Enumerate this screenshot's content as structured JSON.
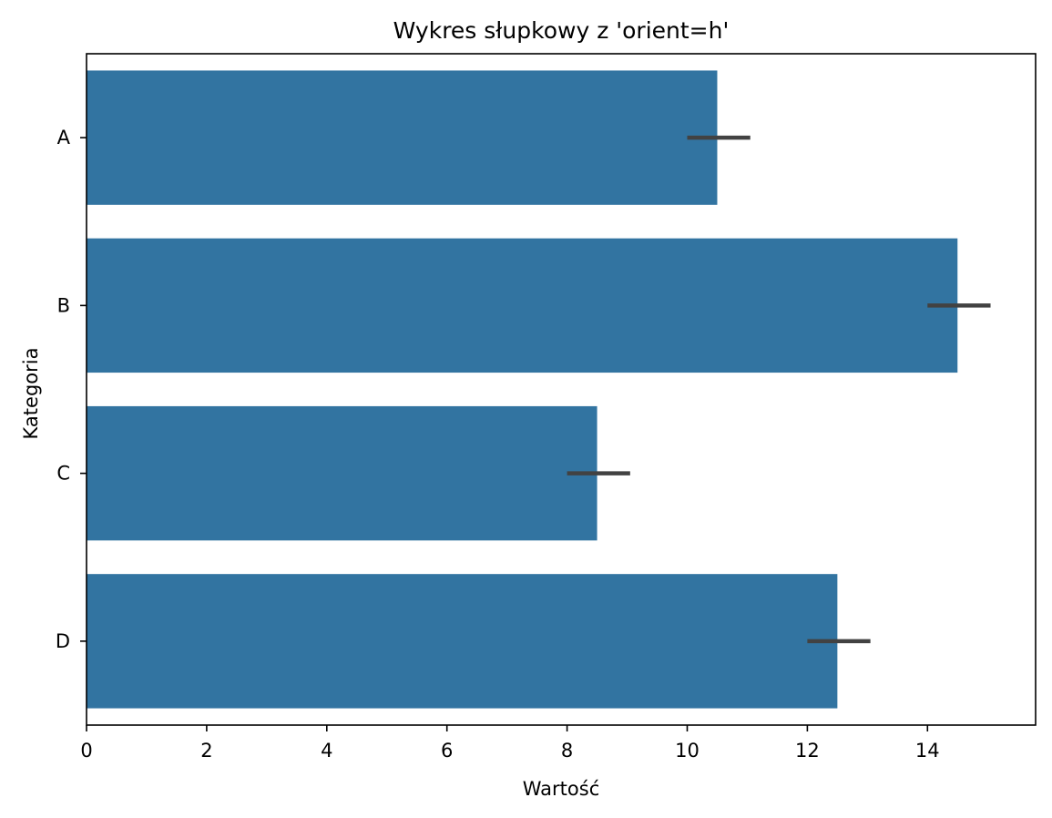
{
  "chart_data": {
    "type": "bar",
    "orientation": "horizontal",
    "title": "Wykres słupkowy z 'orient=h'",
    "xlabel": "Wartość",
    "ylabel": "Kategoria",
    "categories": [
      "A",
      "B",
      "C",
      "D"
    ],
    "values": [
      10.5,
      14.5,
      8.5,
      12.5
    ],
    "error_bars": [
      {
        "low": 10.0,
        "high": 11.05
      },
      {
        "low": 14.0,
        "high": 15.05
      },
      {
        "low": 8.0,
        "high": 9.05
      },
      {
        "low": 12.0,
        "high": 13.05
      }
    ],
    "xlim": [
      0,
      15.8
    ],
    "xticks": [
      0,
      2,
      4,
      6,
      8,
      10,
      12,
      14
    ],
    "bar_color": "#3274a1",
    "errorbar_color": "#424242",
    "grid": false,
    "legend": false
  }
}
